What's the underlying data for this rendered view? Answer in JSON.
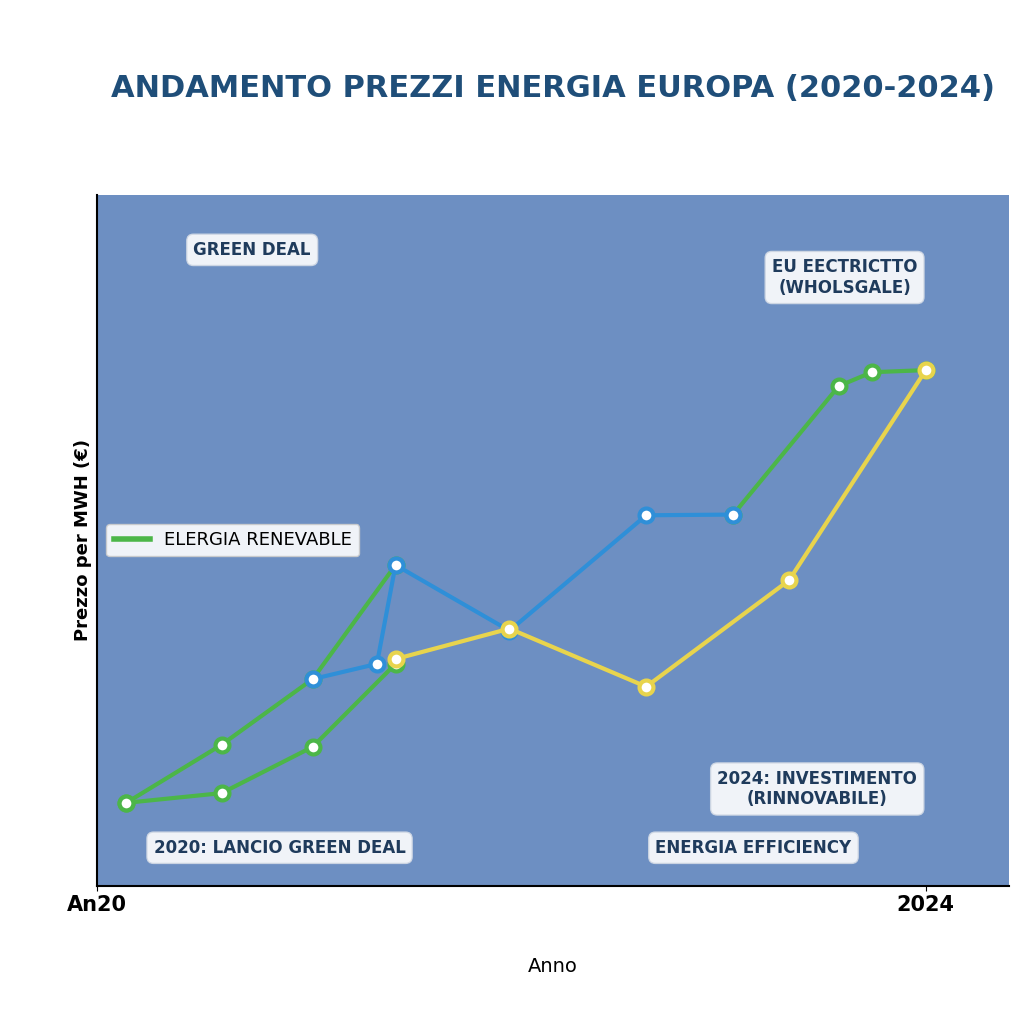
{
  "chart_data": {
    "type": "line",
    "title": "ANDAMENTO PREZZI ENERGIA EUROPA (2020-2024)",
    "x_label": "Anno",
    "y_label": "Prezzo per MWH (€)",
    "xlim": [
      2020,
      2024.4
    ],
    "xticks": [
      {
        "value": 2020,
        "label": "An20"
      },
      {
        "value": 2024,
        "label": "2024"
      }
    ],
    "ylim": [
      0,
      100
    ],
    "yticks": [],
    "tick_labels": "x",
    "legend": "center left",
    "annotations": [
      "GREEN DEAL",
      "EU EECTRICTTO\n(WHOLSGALE)",
      "2020: LANCIO GREEN DEAL",
      "ENERGIA EFFICIENCY",
      "2024: INVESTIMENTO\n(RINNOVABILE)"
    ],
    "series": [
      {
        "name": "ELERGIA RENEVABLE",
        "color": "#4cb648",
        "marker": "o",
        "line_style": "solid",
        "x": [
          2020.14,
          2020.6,
          2021.04,
          2021.44
        ],
        "values": [
          12.0,
          20.4,
          29.9,
          46.4
        ]
      },
      {
        "color": "#4cb648",
        "marker": "o",
        "line_style": "solid",
        "x": [
          2020.14,
          2020.6,
          2021.04,
          2021.44
        ],
        "values": [
          12.0,
          13.4,
          20.1,
          32.1
        ]
      },
      {
        "color": "#4cb648",
        "marker": "o",
        "line_style": "solid",
        "x": [
          2023.07,
          2023.58,
          2023.74,
          2024.0
        ],
        "values": [
          53.7,
          72.3,
          74.3,
          74.6
        ]
      },
      {
        "color": "#2f8fd8",
        "marker": "o",
        "line_style": "solid",
        "x": [
          2021.04,
          2021.35,
          2021.44,
          2021.99,
          2022.65,
          2023.07
        ],
        "values": [
          29.9,
          32.1,
          46.4,
          36.9,
          53.6,
          53.7
        ]
      },
      {
        "color": "#e8d44d",
        "marker": "o",
        "line_style": "solid",
        "x": [
          2021.44,
          2021.99,
          2022.65,
          2023.34,
          2024.0
        ],
        "values": [
          32.8,
          37.2,
          28.8,
          44.2,
          74.6
        ]
      }
    ]
  }
}
